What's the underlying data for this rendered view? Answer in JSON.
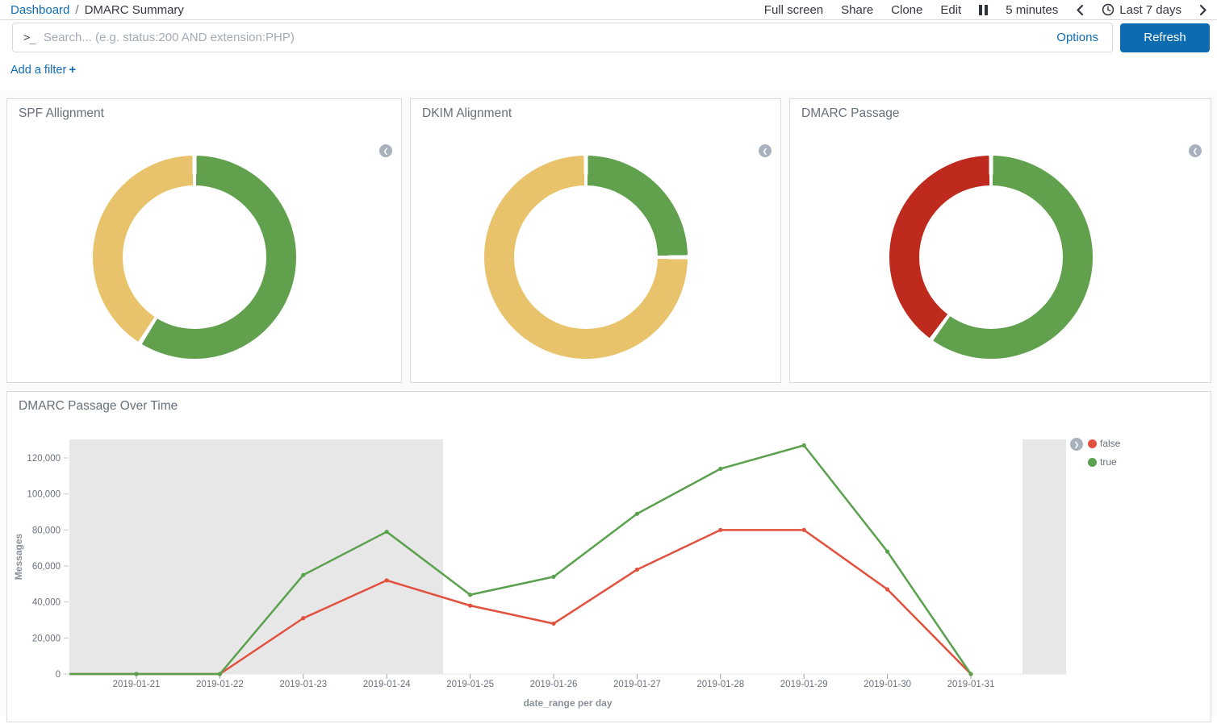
{
  "topbar": {
    "breadcrumb": {
      "link": "Dashboard",
      "separator": "/",
      "current": "DMARC Summary"
    },
    "menu": {
      "full_screen": "Full screen",
      "share": "Share",
      "clone": "Clone",
      "edit": "Edit"
    },
    "refresh_interval": "5 minutes",
    "time_range": "Last 7 days"
  },
  "query_bar": {
    "prompt": ">_",
    "placeholder": "Search... (e.g. status:200 AND extension:PHP)",
    "value": "",
    "options_label": "Options",
    "refresh_label": "Refresh"
  },
  "filter_bar": {
    "add_filter_label": "Add a filter",
    "plus_icon": "+"
  },
  "panels": {
    "spf": {
      "title": "SPF Allignment"
    },
    "dkim": {
      "title": "DKIM Alignment"
    },
    "dmarc": {
      "title": "DMARC Passage"
    },
    "over_time": {
      "title": "DMARC Passage Over Time"
    }
  },
  "colors": {
    "link_blue": "#0e6cb3",
    "refresh_button_blue": "#0d6bb2",
    "donut_green": "#61a14e",
    "donut_yellow": "#e9c36b",
    "donut_red": "#bf2a1e",
    "line_red": "#e2503e",
    "line_green": "#5aa04e",
    "endzone_gray": "#e7e7e7"
  },
  "chart_data": [
    {
      "type": "pie",
      "donut": true,
      "title": "SPF Allignment",
      "legend": "collapsed",
      "slices": [
        {
          "color": "#61a14e",
          "fraction": 0.59
        },
        {
          "color": "#e9c36b",
          "fraction": 0.41
        }
      ]
    },
    {
      "type": "pie",
      "donut": true,
      "title": "DKIM Alignment",
      "legend": "collapsed",
      "slices": [
        {
          "color": "#61a14e",
          "fraction": 0.25
        },
        {
          "color": "#e9c36b",
          "fraction": 0.75
        }
      ]
    },
    {
      "type": "pie",
      "donut": true,
      "title": "DMARC Passage",
      "legend": "collapsed",
      "slices": [
        {
          "color": "#61a14e",
          "fraction": 0.6
        },
        {
          "color": "#bf2a1e",
          "fraction": 0.4
        }
      ]
    },
    {
      "type": "line",
      "title": "DMARC Passage Over Time",
      "xlabel": "date_range per day",
      "ylabel": "Messages",
      "ylim": [
        0,
        130000
      ],
      "yticks": [
        0,
        20000,
        40000,
        60000,
        80000,
        100000,
        120000
      ],
      "categories": [
        "2019-01-21",
        "2019-01-22",
        "2019-01-23",
        "2019-01-24",
        "2019-01-25",
        "2019-01-26",
        "2019-01-27",
        "2019-01-28",
        "2019-01-29",
        "2019-01-30",
        "2019-01-31"
      ],
      "series": [
        {
          "name": "false",
          "color": "#e2503e",
          "values": [
            0,
            0,
            31000,
            52000,
            38000,
            28000,
            58000,
            80000,
            80000,
            47000,
            0
          ]
        },
        {
          "name": "true",
          "color": "#5aa04e",
          "values": [
            0,
            0,
            55000,
            79000,
            44000,
            54000,
            89000,
            114000,
            127000,
            68000,
            0
          ]
        }
      ],
      "legend_position": "right",
      "grid": false
    }
  ]
}
